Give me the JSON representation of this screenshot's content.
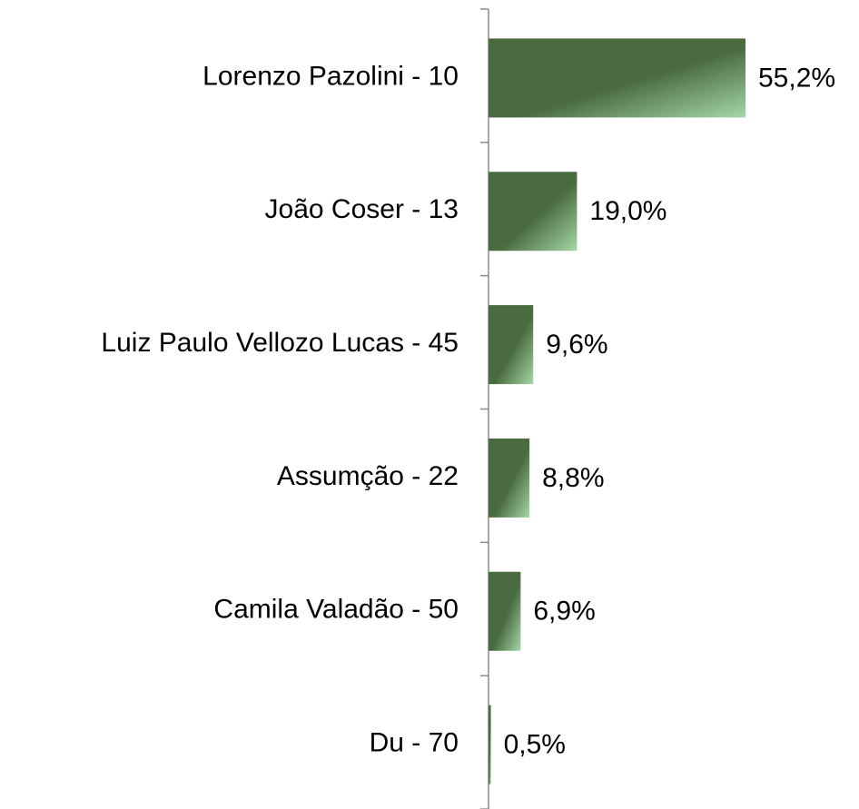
{
  "chart_data": {
    "type": "bar",
    "orientation": "horizontal",
    "categories": [
      "Lorenzo Pazolini - 10",
      "João Coser - 13",
      "Luiz Paulo Vellozo Lucas - 45",
      "Assumção - 22",
      "Camila Valadão - 50",
      "Du - 70"
    ],
    "values": [
      55.2,
      19.0,
      9.6,
      8.8,
      6.9,
      0.5
    ],
    "value_labels": [
      "55,2%",
      "19,0%",
      "9,6%",
      "8,8%",
      "6,9%",
      "0,5%"
    ],
    "color": "#4a6a40"
  }
}
